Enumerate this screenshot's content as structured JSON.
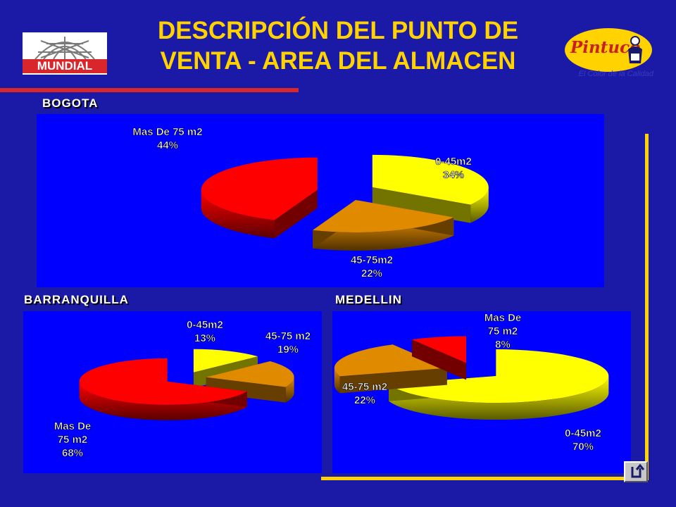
{
  "title": [
    "DESCRIPCIÓN DEL PUNTO DE",
    "VENTA - AREA DEL ALMACEN"
  ],
  "logos": {
    "left_brand": "MUNDIAL",
    "right_brand": "Pintuco",
    "right_tagline": "El Color de la Calidad"
  },
  "colors": {
    "background": "#1a1aa6",
    "title": "#ffd200",
    "panel": "#0000ff",
    "red": "#ff0000",
    "orange": "#e08a00",
    "yellow": "#ffff00"
  },
  "icons": {
    "nav": "return-arrow-icon"
  },
  "chart_data": [
    {
      "type": "pie",
      "title": "BOGOTA",
      "slices": [
        {
          "label": [
            "0-45m2",
            "34%"
          ],
          "value": 34,
          "color": "#ffff00"
        },
        {
          "label": [
            "45-75m2",
            "22%"
          ],
          "value": 22,
          "color": "#e08a00"
        },
        {
          "label": [
            "Mas De 75 m2",
            "44%"
          ],
          "value": 44,
          "color": "#ff0000"
        }
      ]
    },
    {
      "type": "pie",
      "title": "BARRANQUILLA",
      "slices": [
        {
          "label": [
            "0-45m2",
            "13%"
          ],
          "value": 13,
          "color": "#ffff00"
        },
        {
          "label": [
            "45-75 m2",
            "19%"
          ],
          "value": 19,
          "color": "#e08a00"
        },
        {
          "label": [
            "Mas De",
            "75 m2",
            "68%"
          ],
          "value": 68,
          "color": "#ff0000"
        }
      ]
    },
    {
      "type": "pie",
      "title": "MEDELLIN",
      "slices": [
        {
          "label": [
            "0-45m2",
            "70%"
          ],
          "value": 70,
          "color": "#ffff00"
        },
        {
          "label": [
            "45-75 m2",
            "22%"
          ],
          "value": 22,
          "color": "#e08a00"
        },
        {
          "label": [
            "Mas De",
            "75 m2",
            "8%"
          ],
          "value": 8,
          "color": "#ff0000"
        }
      ]
    }
  ]
}
